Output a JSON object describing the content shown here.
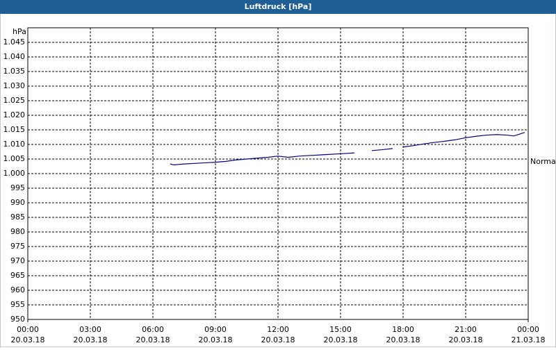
{
  "chart_data": {
    "type": "line",
    "title": "Luftdruck [hPa]",
    "y_label": "hPa",
    "x": [
      6.83,
      7.0,
      7.5,
      8,
      8.5,
      9,
      9.5,
      10,
      10.5,
      11,
      11.5,
      12,
      12.5,
      13,
      13.5,
      14,
      14.5,
      15,
      15.67,
      16,
      16.5,
      17,
      17.5,
      17.75,
      18,
      18.5,
      19,
      19.5,
      20,
      20.5,
      21,
      21.5,
      22,
      22.5,
      23,
      23.3,
      23.83
    ],
    "series": [
      {
        "color": "#00008b",
        "values": [
          1003.3,
          1003.0,
          1003.3,
          1003.5,
          1003.7,
          1003.9,
          1004.2,
          1004.7,
          1005.0,
          1005.3,
          1005.6,
          1006.0,
          1005.6,
          1006.0,
          1006.2,
          1006.4,
          1006.6,
          1006.8,
          1007.1,
          null,
          1007.9,
          1008.2,
          1008.6,
          null,
          1009.1,
          1009.6,
          1010.2,
          1010.7,
          1011.1,
          1011.6,
          1012.3,
          1012.8,
          1013.2,
          1013.4,
          1013.2,
          1012.9,
          1014.1
        ]
      }
    ],
    "xlim": [
      0,
      24
    ],
    "xticks": [
      {
        "value": 0,
        "label": "00:00"
      },
      {
        "value": 3,
        "label": "03:00"
      },
      {
        "value": 6,
        "label": "06:00"
      },
      {
        "value": 9,
        "label": "09:00"
      },
      {
        "value": 12,
        "label": "12:00"
      },
      {
        "value": 15,
        "label": "15:00"
      },
      {
        "value": 18,
        "label": "18:00"
      },
      {
        "value": 21,
        "label": "21:00"
      },
      {
        "value": 24,
        "label": "00:00"
      }
    ],
    "xtick_dates": [
      "20.03.18",
      "20.03.18",
      "20.03.18",
      "20.03.18",
      "20.03.18",
      "20.03.18",
      "20.03.18",
      "20.03.18",
      "21.03.18"
    ],
    "ylim": [
      950,
      1050
    ],
    "yticks": [
      950,
      955,
      960,
      965,
      970,
      975,
      980,
      985,
      990,
      995,
      {
        "value": 1000,
        "label": "1.000"
      },
      {
        "value": 1005,
        "label": "1.005"
      },
      {
        "value": 1010,
        "label": "1.010"
      },
      {
        "value": 1015,
        "label": "1.015"
      },
      {
        "value": 1020,
        "label": "1.020"
      },
      {
        "value": 1025,
        "label": "1.025"
      },
      {
        "value": 1030,
        "label": "1.030"
      },
      {
        "value": 1035,
        "label": "1.035"
      },
      {
        "value": 1040,
        "label": "1.040"
      },
      {
        "value": 1045,
        "label": "1.045"
      }
    ],
    "grid": true,
    "reference": {
      "label": "Normal",
      "value": 1004
    }
  }
}
